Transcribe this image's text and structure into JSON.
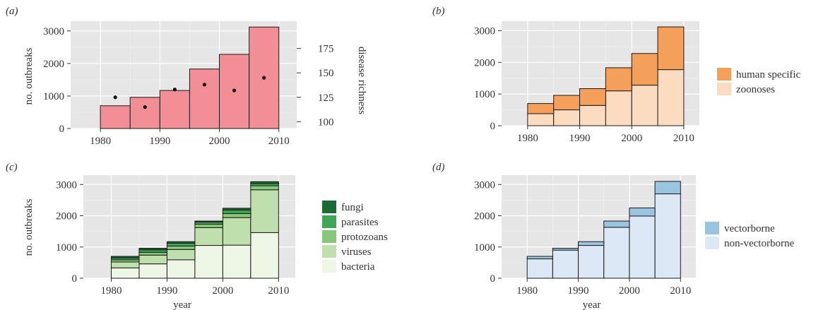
{
  "panels": [
    {
      "id": "a",
      "panel_label": "(a)",
      "ylabel": "no. outbreaks",
      "y2label": "disease richness",
      "xlabel": "",
      "xticks": [
        "1980",
        "1990",
        "2000",
        "2010"
      ],
      "yticks": [
        "0",
        "1000",
        "2000",
        "3000"
      ],
      "y2ticks": [
        "100",
        "125",
        "150",
        "175"
      ],
      "legend": []
    },
    {
      "id": "b",
      "panel_label": "(b)",
      "ylabel": "",
      "xlabel": "",
      "xticks": [
        "1980",
        "1990",
        "2000",
        "2010"
      ],
      "yticks": [
        "0",
        "1000",
        "2000",
        "3000"
      ],
      "legend": [
        "human specific",
        "zoonoses"
      ]
    },
    {
      "id": "c",
      "panel_label": "(c)",
      "ylabel": "no. outbreaks",
      "xlabel": "year",
      "xticks": [
        "1980",
        "1990",
        "2000",
        "2010"
      ],
      "yticks": [
        "0",
        "1000",
        "2000",
        "3000"
      ],
      "legend": [
        "fungi",
        "parasites",
        "protozoans",
        "viruses",
        "bacteria"
      ]
    },
    {
      "id": "d",
      "panel_label": "(d)",
      "ylabel": "",
      "xlabel": "year",
      "xticks": [
        "1980",
        "1990",
        "2000",
        "2010"
      ],
      "yticks": [
        "0",
        "1000",
        "2000",
        "3000"
      ],
      "legend": [
        "vectorborne",
        "non-vectorborne"
      ]
    }
  ],
  "chart_data": [
    {
      "panel": "a",
      "type": "bar",
      "categories": [
        "1980-1984",
        "1985-1989",
        "1990-1994",
        "1995-1999",
        "2000-2004",
        "2005-2010"
      ],
      "xlim": [
        1975,
        2013
      ],
      "ylim": [
        0,
        3300
      ],
      "bar_bins": [
        [
          1980,
          1985
        ],
        [
          1985,
          1990
        ],
        [
          1990,
          1995
        ],
        [
          1995,
          2000
        ],
        [
          2000,
          2005
        ],
        [
          2005,
          2010
        ]
      ],
      "series": [
        {
          "values": [
            700,
            960,
            1170,
            1830,
            2280,
            3120
          ],
          "color": "#f28e96"
        }
      ],
      "secondary_points": {
        "x": [
          1982.5,
          1987.5,
          1992.5,
          1997.5,
          2002.5,
          2007.5
        ],
        "y": [
          125,
          115,
          133,
          138,
          132,
          145
        ],
        "y2lim": [
          93,
          203
        ]
      },
      "grid": true
    },
    {
      "panel": "b",
      "type": "bar",
      "stacked": true,
      "xlim": [
        1975,
        2013
      ],
      "ylim": [
        0,
        3300
      ],
      "bar_bins": [
        [
          1980,
          1985
        ],
        [
          1985,
          1990
        ],
        [
          1990,
          1995
        ],
        [
          1995,
          2000
        ],
        [
          2000,
          2005
        ],
        [
          2005,
          2010
        ]
      ],
      "series": [
        {
          "name": "zoonoses",
          "values": [
            380,
            500,
            640,
            1100,
            1280,
            1770
          ],
          "color": "#fbdcc0"
        },
        {
          "name": "human specific",
          "values": [
            320,
            460,
            530,
            730,
            1000,
            1350
          ],
          "color": "#f5a05a"
        }
      ],
      "grid": true
    },
    {
      "panel": "c",
      "type": "bar",
      "stacked": true,
      "xlim": [
        1975,
        2013
      ],
      "ylim": [
        0,
        3300
      ],
      "bar_bins": [
        [
          1980,
          1985
        ],
        [
          1985,
          1990
        ],
        [
          1990,
          1995
        ],
        [
          1995,
          2000
        ],
        [
          2000,
          2005
        ],
        [
          2005,
          2010
        ]
      ],
      "series": [
        {
          "name": "bacteria",
          "values": [
            330,
            460,
            590,
            1050,
            1060,
            1460
          ],
          "color": "#eef6e6"
        },
        {
          "name": "viruses",
          "values": [
            190,
            280,
            330,
            570,
            880,
            1370
          ],
          "color": "#bfe0ad"
        },
        {
          "name": "protozoans",
          "values": [
            70,
            90,
            110,
            110,
            130,
            130
          ],
          "color": "#86c77a"
        },
        {
          "name": "parasites",
          "values": [
            60,
            80,
            90,
            70,
            110,
            70
          ],
          "color": "#41a556"
        },
        {
          "name": "fungi",
          "values": [
            50,
            50,
            50,
            30,
            60,
            60
          ],
          "color": "#196b33"
        }
      ],
      "grid": true
    },
    {
      "panel": "d",
      "type": "bar",
      "stacked": true,
      "xlim": [
        1975,
        2013
      ],
      "ylim": [
        0,
        3300
      ],
      "bar_bins": [
        [
          1980,
          1985
        ],
        [
          1985,
          1990
        ],
        [
          1990,
          1995
        ],
        [
          1995,
          2000
        ],
        [
          2000,
          2005
        ],
        [
          2005,
          2010
        ]
      ],
      "series": [
        {
          "name": "non-vectorborne",
          "values": [
            620,
            900,
            1050,
            1630,
            1990,
            2700
          ],
          "color": "#dce8f5"
        },
        {
          "name": "vectorborne",
          "values": [
            80,
            60,
            120,
            200,
            260,
            400
          ],
          "color": "#99c5e0"
        }
      ],
      "grid": true
    }
  ]
}
